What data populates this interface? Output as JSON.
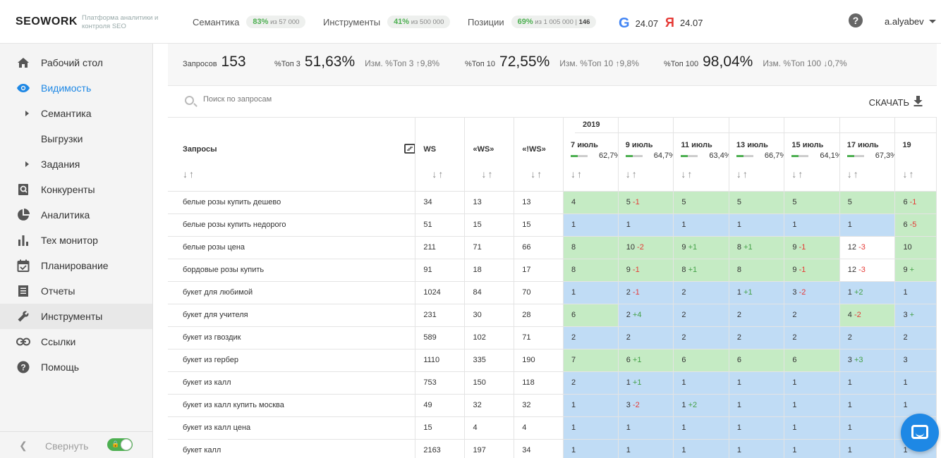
{
  "header": {
    "logo": "SEOWORK",
    "tagline": "Платформа аналитики и контроля SEO",
    "semantics": {
      "label": "Семантика",
      "pct": "83%",
      "rest": "из 57 000"
    },
    "tools": {
      "label": "Инструменты",
      "pct": "41%",
      "rest": "из 500 000"
    },
    "positions": {
      "label": "Позиции",
      "pct": "69%",
      "rest": "из 1 005 000 |",
      "extra": "146"
    },
    "google_date": "24.07",
    "yandex_date": "24.07",
    "user": "a.alyabev"
  },
  "sidebar": {
    "items": [
      {
        "label": "Рабочий стол",
        "icon": "home-icon"
      },
      {
        "label": "Видимость",
        "icon": "eye-icon"
      },
      {
        "label": "Семантика",
        "icon": "caret-right-icon"
      },
      {
        "label": "Выгрузки",
        "icon": ""
      },
      {
        "label": "Задания",
        "icon": "caret-right-icon"
      },
      {
        "label": "Конкуренты",
        "icon": "search-doc-icon"
      },
      {
        "label": "Аналитика",
        "icon": "pie-chart-icon"
      },
      {
        "label": "Тех монитор",
        "icon": "bar-chart-icon"
      },
      {
        "label": "Планирование",
        "icon": "calendar-icon"
      },
      {
        "label": "Отчеты",
        "icon": "list-icon"
      },
      {
        "label": "Инструменты",
        "icon": "wrench-icon"
      },
      {
        "label": "Ссылки",
        "icon": "link-icon"
      },
      {
        "label": "Помощь",
        "icon": "help-icon"
      }
    ],
    "collapse_label": "Свернуть"
  },
  "summary": {
    "queries_label": "Запросов",
    "queries_value": "153",
    "top3_label": "%Топ 3",
    "top3_value": "51,63%",
    "top3_change": "Изм. %Топ 3 ↑9,8%",
    "top10_label": "%Топ 10",
    "top10_value": "72,55%",
    "top10_change": "Изм. %Топ 10 ↑9,8%",
    "top100_label": "%Топ 100",
    "top100_value": "98,04%",
    "top100_change": "Изм. %Топ 100 ↓0,7%"
  },
  "search": {
    "placeholder": "Поиск по запросам"
  },
  "download_label": "СКАЧАТЬ",
  "table": {
    "col_query": "Запросы",
    "col_ws": "WS",
    "col_qws": "«WS»",
    "col_eqws": "«!WS»",
    "sort_arrows": "↓↑",
    "year": "2019",
    "dates": [
      {
        "label": "7 июль",
        "pct": "62,7%"
      },
      {
        "label": "9 июль",
        "pct": "64,7%"
      },
      {
        "label": "11 июль",
        "pct": "63,4%"
      },
      {
        "label": "13 июль",
        "pct": "66,7%"
      },
      {
        "label": "15 июль",
        "pct": "64,1%"
      },
      {
        "label": "17 июль",
        "pct": "67,3%"
      },
      {
        "label": "19",
        "pct": ""
      }
    ],
    "rows": [
      {
        "q": "белые розы купить дешево",
        "ws": "34",
        "qws": "13",
        "eqws": "13",
        "cells": [
          [
            "4",
            "",
            "g"
          ],
          [
            "5",
            "-1",
            "g"
          ],
          [
            "5",
            "",
            "g"
          ],
          [
            "5",
            "",
            "g"
          ],
          [
            "5",
            "",
            "g"
          ],
          [
            "5",
            "",
            "g"
          ],
          [
            "6",
            "-1",
            "g"
          ]
        ]
      },
      {
        "q": "белые розы купить недорого",
        "ws": "51",
        "qws": "15",
        "eqws": "15",
        "cells": [
          [
            "1",
            "",
            "b"
          ],
          [
            "1",
            "",
            "b"
          ],
          [
            "1",
            "",
            "b"
          ],
          [
            "1",
            "",
            "b"
          ],
          [
            "1",
            "",
            "b"
          ],
          [
            "1",
            "",
            "b"
          ],
          [
            "6",
            "-5",
            "g"
          ]
        ]
      },
      {
        "q": "белые розы цена",
        "ws": "211",
        "qws": "71",
        "eqws": "66",
        "cells": [
          [
            "8",
            "",
            "g"
          ],
          [
            "10",
            "-2",
            "g"
          ],
          [
            "9",
            "+1",
            "g"
          ],
          [
            "8",
            "+1",
            "g"
          ],
          [
            "9",
            "-1",
            "g"
          ],
          [
            "12",
            "-3",
            "w"
          ],
          [
            "10",
            "",
            "g"
          ]
        ]
      },
      {
        "q": "бордовые розы купить",
        "ws": "91",
        "qws": "18",
        "eqws": "17",
        "cells": [
          [
            "8",
            "",
            "g"
          ],
          [
            "9",
            "-1",
            "g"
          ],
          [
            "8",
            "+1",
            "g"
          ],
          [
            "8",
            "",
            "g"
          ],
          [
            "9",
            "-1",
            "g"
          ],
          [
            "12",
            "-3",
            "w"
          ],
          [
            "9",
            "+",
            "g"
          ]
        ]
      },
      {
        "q": "букет для любимой",
        "ws": "1024",
        "qws": "84",
        "eqws": "70",
        "cells": [
          [
            "1",
            "",
            "b"
          ],
          [
            "2",
            "-1",
            "b"
          ],
          [
            "2",
            "",
            "b"
          ],
          [
            "1",
            "+1",
            "b"
          ],
          [
            "3",
            "-2",
            "b"
          ],
          [
            "1",
            "+2",
            "b"
          ],
          [
            "1",
            "",
            "b"
          ]
        ]
      },
      {
        "q": "букет для учителя",
        "ws": "231",
        "qws": "30",
        "eqws": "28",
        "cells": [
          [
            "6",
            "",
            "g"
          ],
          [
            "2",
            "+4",
            "b"
          ],
          [
            "2",
            "",
            "b"
          ],
          [
            "2",
            "",
            "b"
          ],
          [
            "2",
            "",
            "b"
          ],
          [
            "4",
            "-2",
            "g"
          ],
          [
            "3",
            "+",
            "b"
          ]
        ]
      },
      {
        "q": "букет из гвоздик",
        "ws": "589",
        "qws": "102",
        "eqws": "71",
        "cells": [
          [
            "2",
            "",
            "b"
          ],
          [
            "2",
            "",
            "b"
          ],
          [
            "2",
            "",
            "b"
          ],
          [
            "2",
            "",
            "b"
          ],
          [
            "2",
            "",
            "b"
          ],
          [
            "2",
            "",
            "b"
          ],
          [
            "2",
            "",
            "b"
          ]
        ]
      },
      {
        "q": "букет из гербер",
        "ws": "1110",
        "qws": "335",
        "eqws": "190",
        "cells": [
          [
            "7",
            "",
            "g"
          ],
          [
            "6",
            "+1",
            "g"
          ],
          [
            "6",
            "",
            "g"
          ],
          [
            "6",
            "",
            "g"
          ],
          [
            "6",
            "",
            "g"
          ],
          [
            "3",
            "+3",
            "b"
          ],
          [
            "3",
            "",
            "b"
          ]
        ]
      },
      {
        "q": "букет из калл",
        "ws": "753",
        "qws": "150",
        "eqws": "118",
        "cells": [
          [
            "2",
            "",
            "b"
          ],
          [
            "1",
            "+1",
            "b"
          ],
          [
            "1",
            "",
            "b"
          ],
          [
            "1",
            "",
            "b"
          ],
          [
            "1",
            "",
            "b"
          ],
          [
            "1",
            "",
            "b"
          ],
          [
            "1",
            "",
            "b"
          ]
        ]
      },
      {
        "q": "букет из калл купить москва",
        "ws": "49",
        "qws": "32",
        "eqws": "32",
        "cells": [
          [
            "1",
            "",
            "b"
          ],
          [
            "3",
            "-2",
            "b"
          ],
          [
            "1",
            "+2",
            "b"
          ],
          [
            "1",
            "",
            "b"
          ],
          [
            "1",
            "",
            "b"
          ],
          [
            "1",
            "",
            "b"
          ],
          [
            "1",
            "",
            "b"
          ]
        ]
      },
      {
        "q": "букет из калл цена",
        "ws": "15",
        "qws": "4",
        "eqws": "4",
        "cells": [
          [
            "1",
            "",
            "b"
          ],
          [
            "1",
            "",
            "b"
          ],
          [
            "1",
            "",
            "b"
          ],
          [
            "1",
            "",
            "b"
          ],
          [
            "1",
            "",
            "b"
          ],
          [
            "1",
            "",
            "b"
          ],
          [
            "1",
            "",
            "b"
          ]
        ]
      },
      {
        "q": "букет калл",
        "ws": "2163",
        "qws": "197",
        "eqws": "34",
        "cells": [
          [
            "1",
            "",
            "b"
          ],
          [
            "1",
            "",
            "b"
          ],
          [
            "1",
            "",
            "b"
          ],
          [
            "1",
            "",
            "b"
          ],
          [
            "1",
            "",
            "b"
          ],
          [
            "1",
            "",
            "b"
          ],
          [
            "1",
            "",
            "b"
          ]
        ]
      }
    ]
  },
  "colors": {
    "accent": "#1e88e5",
    "green_cell": "#c5ebc4",
    "blue_cell": "#c0dcf5",
    "pos": "#43a047",
    "neg": "#e53935"
  }
}
